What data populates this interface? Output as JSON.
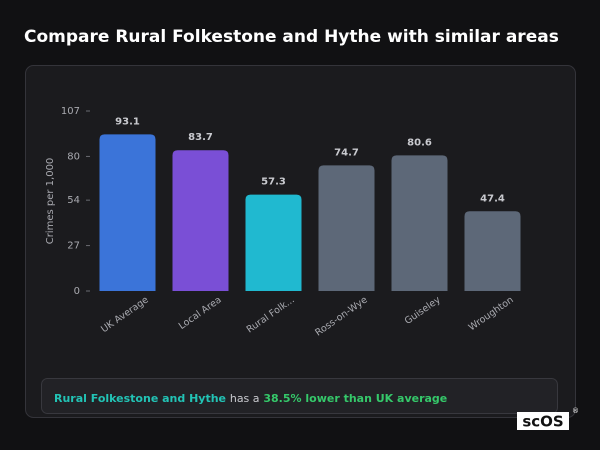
{
  "chart_data": {
    "type": "bar",
    "title": "Compare Rural Folkestone and Hythe with similar areas",
    "y_label": "Crimes per 1,000",
    "categories": [
      "UK Average",
      "Local Area",
      "Rural Folk...",
      "Ross-on-Wye",
      "Guiseley",
      "Wroughton"
    ],
    "values": [
      93.1,
      83.7,
      57.3,
      74.7,
      80.6,
      47.4
    ],
    "colors": [
      "#3b74d9",
      "#7a4fd6",
      "#20b9d0",
      "#5d6878",
      "#5d6878",
      "#5d6878"
    ],
    "ylim": [
      0,
      107
    ],
    "yticks": [
      0,
      27,
      54,
      80,
      107
    ],
    "grid": false
  },
  "summary": {
    "area": "Rural Folkestone and Hythe",
    "text": "has a",
    "highlight": "38.5% lower than UK average"
  },
  "logo": {
    "text": "scOS",
    "mark": "®"
  }
}
